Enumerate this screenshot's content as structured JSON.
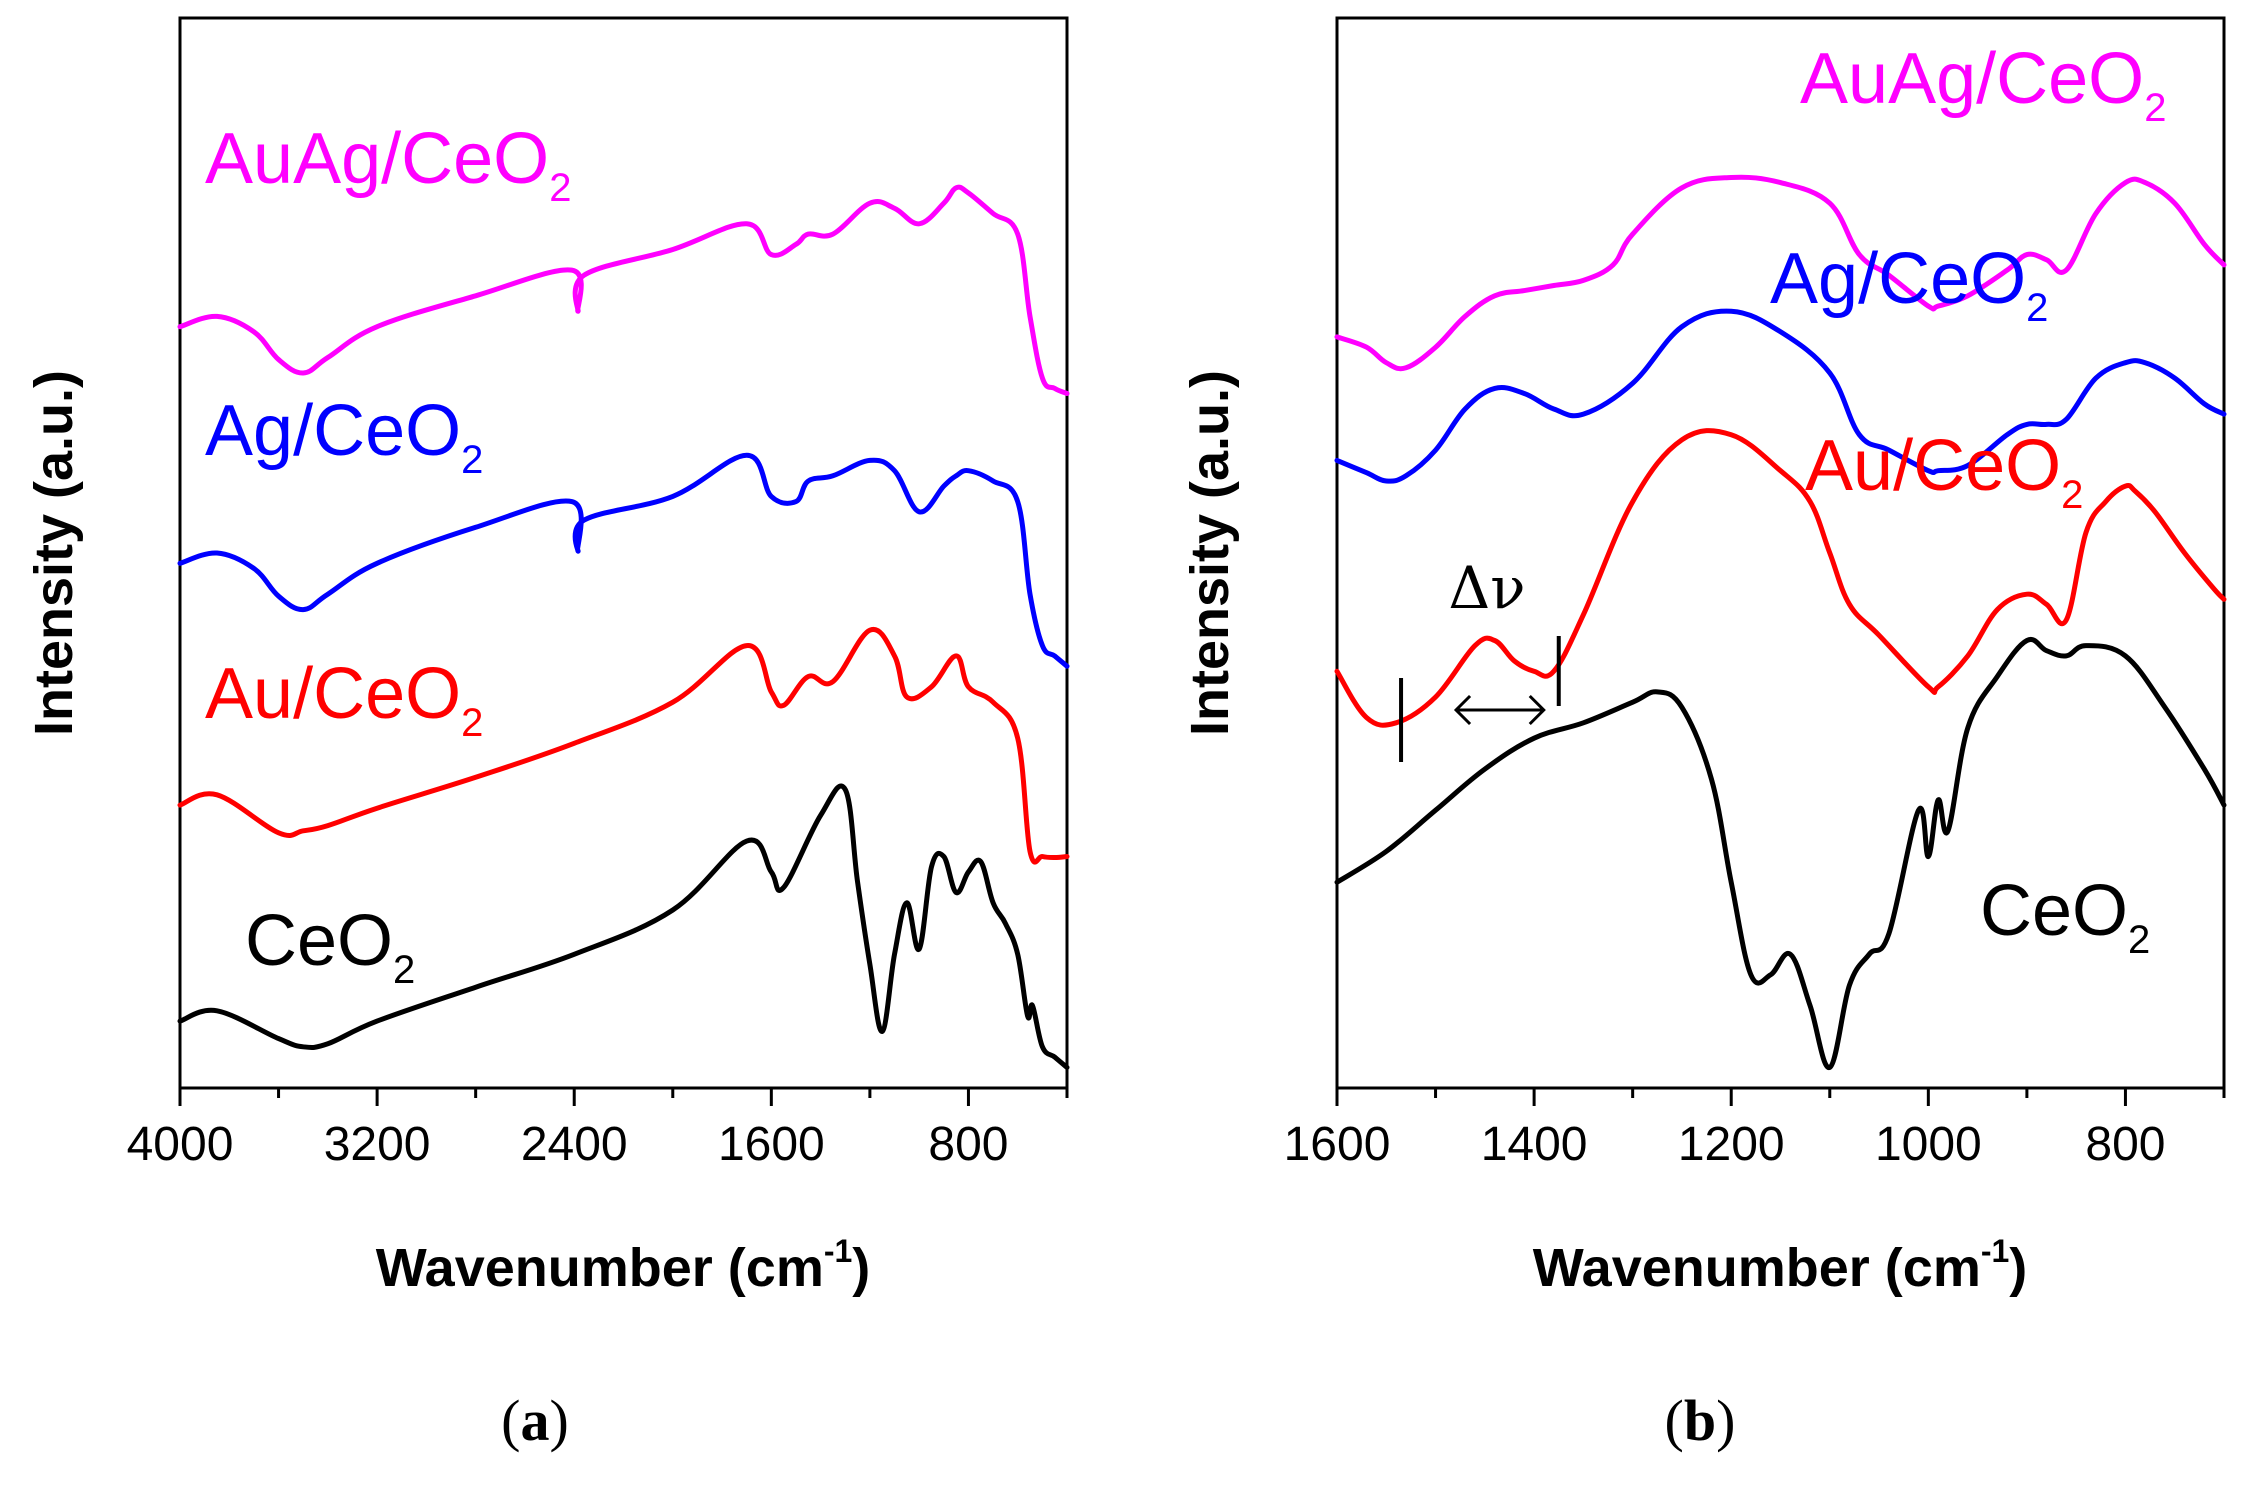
{
  "chart_data": [
    {
      "panel_label": "a",
      "type": "line",
      "xlabel": "Wavenumber (cm",
      "xlabel_sup": "-1",
      "xlabel_close": ")",
      "ylabel": "Intensity (a.u.)",
      "xlim": [
        4000,
        400
      ],
      "ylim": [
        0,
        10.4
      ],
      "xticks": [
        {
          "value": 4000,
          "label": "4000"
        },
        {
          "value": 3200,
          "label": "3200"
        },
        {
          "value": 2400,
          "label": "2400"
        },
        {
          "value": 1600,
          "label": "1600"
        },
        {
          "value": 800,
          "label": "800"
        }
      ],
      "series": [
        {
          "name": "CeO2",
          "label_main": "CeO",
          "label_sub": "2",
          "color": "#000000",
          "x": [
            4000,
            3850,
            3600,
            3500,
            3400,
            3200,
            2800,
            2400,
            2000,
            1700,
            1600,
            1550,
            1400,
            1300,
            1250,
            1200,
            1150,
            1100,
            1050,
            1000,
            950,
            900,
            850,
            800,
            750,
            700,
            650,
            600,
            560,
            540,
            500,
            450,
            400
          ],
          "y": [
            0.65,
            0.75,
            0.48,
            0.4,
            0.43,
            0.65,
            0.98,
            1.3,
            1.73,
            2.4,
            2.1,
            1.95,
            2.65,
            2.9,
            2.0,
            1.2,
            0.55,
            1.3,
            1.8,
            1.35,
            2.15,
            2.25,
            1.9,
            2.1,
            2.2,
            1.8,
            1.6,
            1.3,
            0.7,
            0.8,
            0.4,
            0.3,
            0.2
          ]
        },
        {
          "name": "Au/CeO2",
          "label_main": "Au/CeO",
          "label_sub": "2",
          "color": "#ff0000",
          "x": [
            4000,
            3850,
            3600,
            3500,
            3400,
            3200,
            2800,
            2400,
            2000,
            1700,
            1600,
            1550,
            1450,
            1350,
            1200,
            1100,
            1050,
            950,
            850,
            800,
            700,
            600,
            550,
            500,
            450,
            400
          ],
          "y": [
            2.75,
            2.85,
            2.48,
            2.5,
            2.55,
            2.72,
            3.02,
            3.35,
            3.75,
            4.3,
            3.85,
            3.72,
            4.0,
            3.95,
            4.45,
            4.2,
            3.8,
            3.9,
            4.2,
            3.9,
            3.75,
            3.4,
            2.3,
            2.25,
            2.24,
            2.25
          ]
        },
        {
          "name": "Ag/CeO2",
          "label_main": "Ag/CeO",
          "label_sub": "2",
          "color": "#0000ff",
          "x": [
            4000,
            3850,
            3700,
            3600,
            3500,
            3400,
            3200,
            2800,
            2410,
            2385,
            2360,
            2000,
            1700,
            1600,
            1500,
            1450,
            1350,
            1200,
            1100,
            1000,
            900,
            850,
            800,
            700,
            600,
            550,
            500,
            450,
            400
          ],
          "y": [
            5.1,
            5.2,
            5.05,
            4.78,
            4.65,
            4.8,
            5.1,
            5.45,
            5.7,
            5.22,
            5.52,
            5.75,
            6.15,
            5.75,
            5.7,
            5.9,
            5.95,
            6.1,
            6.0,
            5.6,
            5.85,
            5.95,
            6.0,
            5.9,
            5.7,
            4.8,
            4.3,
            4.2,
            4.1
          ]
        },
        {
          "name": "AuAg/CeO2",
          "label_main": "AuAg/CeO",
          "label_sub": "2",
          "color": "#ff00ff",
          "x": [
            4000,
            3850,
            3700,
            3600,
            3500,
            3400,
            3200,
            2800,
            2410,
            2385,
            2360,
            2000,
            1700,
            1600,
            1500,
            1450,
            1350,
            1200,
            1100,
            1000,
            900,
            850,
            800,
            700,
            600,
            550,
            500,
            450,
            400
          ],
          "y": [
            7.4,
            7.5,
            7.35,
            7.08,
            6.95,
            7.1,
            7.4,
            7.7,
            7.95,
            7.55,
            7.9,
            8.15,
            8.4,
            8.1,
            8.2,
            8.3,
            8.3,
            8.6,
            8.55,
            8.4,
            8.6,
            8.75,
            8.7,
            8.5,
            8.3,
            7.5,
            6.9,
            6.8,
            6.75
          ]
        }
      ],
      "annotations": []
    },
    {
      "panel_label": "b",
      "type": "line",
      "xlabel": "Wavenumber (cm",
      "xlabel_sup": "-1",
      "xlabel_close": ")",
      "ylabel": "Intensity (a.u.)",
      "xlim": [
        1600,
        700
      ],
      "ylim": [
        0,
        10.4
      ],
      "xticks": [
        {
          "value": 1600,
          "label": "1600"
        },
        {
          "value": 1400,
          "label": "1400"
        },
        {
          "value": 1200,
          "label": "1200"
        },
        {
          "value": 1000,
          "label": "1000"
        },
        {
          "value": 800,
          "label": "800"
        }
      ],
      "series": [
        {
          "name": "CeO2",
          "label_main": "CeO",
          "label_sub": "2",
          "color": "#000000",
          "x": [
            1600,
            1550,
            1500,
            1450,
            1400,
            1350,
            1300,
            1275,
            1250,
            1220,
            1200,
            1180,
            1160,
            1140,
            1120,
            1100,
            1080,
            1060,
            1040,
            1010,
            1000,
            990,
            980,
            960,
            930,
            900,
            880,
            860,
            840,
            800,
            760,
            720,
            700
          ],
          "y": [
            2.0,
            2.3,
            2.7,
            3.1,
            3.4,
            3.55,
            3.75,
            3.85,
            3.7,
            3.0,
            2.0,
            1.1,
            1.1,
            1.3,
            0.8,
            0.2,
            1.0,
            1.3,
            1.5,
            2.7,
            2.25,
            2.8,
            2.5,
            3.5,
            4.0,
            4.35,
            4.25,
            4.2,
            4.3,
            4.2,
            3.7,
            3.1,
            2.75
          ]
        },
        {
          "name": "Au/CeO2",
          "label_main": "Au/CeO",
          "label_sub": "2",
          "color": "#ff0000",
          "x": [
            1600,
            1570,
            1540,
            1500,
            1460,
            1440,
            1420,
            1400,
            1380,
            1350,
            1300,
            1250,
            1200,
            1150,
            1120,
            1100,
            1080,
            1050,
            1000,
            990,
            960,
            930,
            900,
            880,
            860,
            840,
            820,
            800,
            790,
            770,
            740,
            710,
            700
          ],
          "y": [
            4.05,
            3.6,
            3.55,
            3.8,
            4.3,
            4.35,
            4.15,
            4.05,
            4.05,
            4.6,
            5.7,
            6.3,
            6.35,
            6.0,
            5.7,
            5.2,
            4.7,
            4.4,
            3.9,
            3.9,
            4.2,
            4.65,
            4.8,
            4.7,
            4.55,
            5.4,
            5.7,
            5.85,
            5.8,
            5.6,
            5.2,
            4.85,
            4.75
          ]
        },
        {
          "name": "Ag/CeO2",
          "label_main": "Ag/CeO",
          "label_sub": "2",
          "color": "#0000ff",
          "x": [
            1600,
            1570,
            1550,
            1530,
            1500,
            1470,
            1440,
            1410,
            1380,
            1350,
            1300,
            1250,
            1200,
            1150,
            1100,
            1070,
            1040,
            1000,
            990,
            960,
            920,
            900,
            880,
            860,
            830,
            800,
            780,
            750,
            720,
            700
          ],
          "y": [
            6.1,
            5.98,
            5.9,
            5.95,
            6.2,
            6.6,
            6.8,
            6.75,
            6.6,
            6.55,
            6.85,
            7.4,
            7.55,
            7.35,
            6.95,
            6.35,
            6.2,
            6.0,
            6.0,
            6.05,
            6.35,
            6.45,
            6.45,
            6.5,
            6.9,
            7.05,
            7.05,
            6.9,
            6.65,
            6.55
          ]
        },
        {
          "name": "AuAg/CeO2",
          "label_main": "AuAg/CeO",
          "label_sub": "2",
          "color": "#ff00ff",
          "x": [
            1600,
            1570,
            1550,
            1530,
            1500,
            1470,
            1440,
            1410,
            1380,
            1350,
            1320,
            1300,
            1250,
            1200,
            1150,
            1100,
            1070,
            1040,
            1000,
            990,
            960,
            920,
            900,
            880,
            860,
            830,
            800,
            780,
            750,
            720,
            700
          ],
          "y": [
            7.3,
            7.2,
            7.05,
            7.0,
            7.2,
            7.5,
            7.7,
            7.75,
            7.8,
            7.85,
            8.0,
            8.3,
            8.75,
            8.85,
            8.8,
            8.6,
            8.1,
            7.9,
            7.6,
            7.6,
            7.7,
            7.95,
            8.1,
            8.05,
            7.95,
            8.5,
            8.8,
            8.8,
            8.6,
            8.2,
            8.0
          ]
        }
      ],
      "annotations": [
        {
          "text": "Δν",
          "marker_left_wavenumber": 1535,
          "marker_right_wavenumber": 1375
        }
      ]
    }
  ]
}
